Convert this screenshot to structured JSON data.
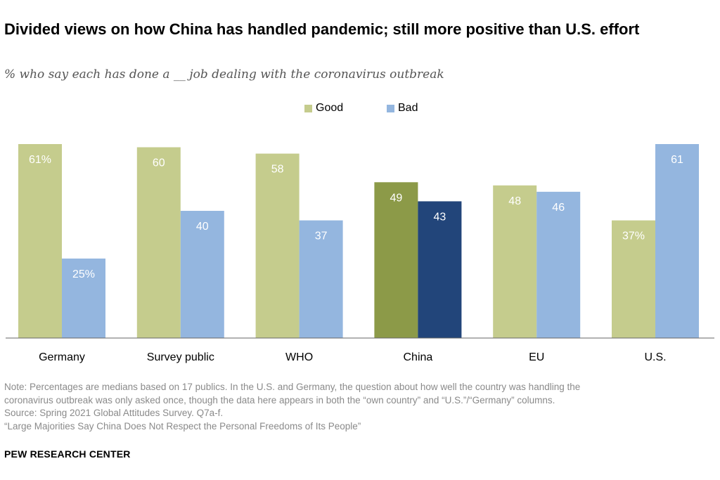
{
  "title": "Divided views on how China has handled pandemic; still more positive than U.S. effort",
  "subtitle": "% who say each has done a __ job dealing with the coronavirus outbreak",
  "legend": {
    "good": "Good",
    "bad": "Bad"
  },
  "colors": {
    "good": "#c5cc8d",
    "bad": "#94b6df",
    "good_highlight": "#8c9a48",
    "bad_highlight": "#22457a",
    "label_on_light": "#ffffff",
    "axis": "#666666"
  },
  "chart_data": {
    "type": "bar",
    "categories": [
      "Germany",
      "Survey public",
      "WHO",
      "China",
      "EU",
      "U.S."
    ],
    "series": [
      {
        "name": "Good",
        "values": [
          61,
          60,
          58,
          49,
          48,
          37
        ],
        "labels": [
          "61%",
          "60",
          "58",
          "49",
          "48",
          "37%"
        ]
      },
      {
        "name": "Bad",
        "values": [
          25,
          40,
          37,
          43,
          46,
          61
        ],
        "labels": [
          "25%",
          "40",
          "37",
          "43",
          "46",
          "61"
        ]
      }
    ],
    "highlight_category": "China",
    "title": "Divided views on how China has handled pandemic; still more positive than U.S. effort",
    "ylim": [
      0,
      61
    ],
    "legend_position": "top-center"
  },
  "notes": {
    "line1": "Note: Percentages are medians based on 17 publics. In the U.S. and Germany, the question about how well the country was handling the",
    "line2": "coronavirus outbreak was only asked once, though the data here appears in both the “own country” and “U.S.”/“Germany” columns.",
    "line3": "Source: Spring 2021 Global Attitudes Survey. Q7a-f.",
    "line4": "“Large Majorities Say China Does Not Respect the Personal Freedoms of Its People”"
  },
  "brand": "PEW RESEARCH CENTER"
}
